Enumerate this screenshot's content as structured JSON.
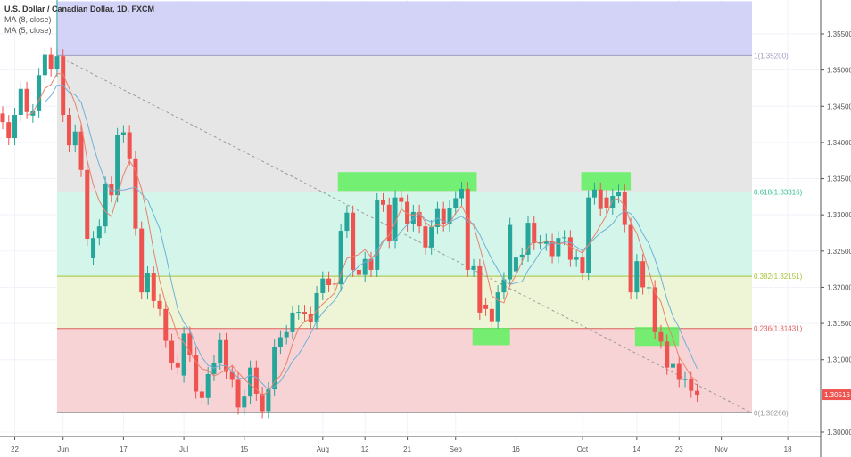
{
  "header": {
    "title": "U.S. Dollar / Canadian Dollar, 1D, FXCM",
    "indicators": [
      "MA (8, close)",
      "MA (5, close)"
    ]
  },
  "chart_data": {
    "type": "candlestick",
    "symbol": "USDCAD",
    "ylim": [
      1.2985,
      1.3595
    ],
    "y_ticks": [
      "1.30000",
      "1.31000",
      "1.31500",
      "1.32000",
      "1.32500",
      "1.33000",
      "1.33500",
      "1.34000",
      "1.34500",
      "1.35000",
      "1.35500"
    ],
    "x_ticks": [
      {
        "label": "22",
        "i": 2
      },
      {
        "label": "Jun",
        "i": 10
      },
      {
        "label": "17",
        "i": 20
      },
      {
        "label": "Jul",
        "i": 30
      },
      {
        "label": "15",
        "i": 40
      },
      {
        "label": "Aug",
        "i": 53
      },
      {
        "label": "12",
        "i": 60
      },
      {
        "label": "21",
        "i": 67
      },
      {
        "label": "Sep",
        "i": 75
      },
      {
        "label": "16",
        "i": 85
      },
      {
        "label": "Oct",
        "i": 96
      },
      {
        "label": "14",
        "i": 105
      },
      {
        "label": "23",
        "i": 112
      },
      {
        "label": "Nov",
        "i": 119
      },
      {
        "label": "18",
        "i": 130
      }
    ],
    "candles_oc": [
      [
        1.344,
        1.3428
      ],
      [
        1.3428,
        1.3406
      ],
      [
        1.3406,
        1.3438
      ],
      [
        1.3438,
        1.3474
      ],
      [
        1.3474,
        1.3442
      ],
      [
        1.3437,
        1.3443
      ],
      [
        1.3443,
        1.3493
      ],
      [
        1.3493,
        1.3521
      ],
      [
        1.3521,
        1.3501
      ],
      [
        1.3501,
        1.3519
      ],
      [
        1.3519,
        1.3438
      ],
      [
        1.3438,
        1.3396
      ],
      [
        1.3396,
        1.3415
      ],
      [
        1.3415,
        1.3362
      ],
      [
        1.3362,
        1.3267
      ],
      [
        1.324,
        1.3268
      ],
      [
        1.3268,
        1.3284
      ],
      [
        1.3284,
        1.3343
      ],
      [
        1.3343,
        1.3327
      ],
      [
        1.3327,
        1.341
      ],
      [
        1.341,
        1.3414
      ],
      [
        1.3414,
        1.3378
      ],
      [
        1.3378,
        1.3281
      ],
      [
        1.3281,
        1.3193
      ],
      [
        1.3193,
        1.3219
      ],
      [
        1.3219,
        1.3181
      ],
      [
        1.3181,
        1.317
      ],
      [
        1.317,
        1.3126
      ],
      [
        1.3126,
        1.3096
      ],
      [
        1.3096,
        1.3089
      ],
      [
        1.3078,
        1.3136
      ],
      [
        1.3136,
        1.3107
      ],
      [
        1.3107,
        1.3056
      ],
      [
        1.3056,
        1.3047
      ],
      [
        1.3047,
        1.308
      ],
      [
        1.308,
        1.3096
      ],
      [
        1.3096,
        1.3127
      ],
      [
        1.3127,
        1.3083
      ],
      [
        1.3083,
        1.3072
      ],
      [
        1.3072,
        1.3034
      ],
      [
        1.3034,
        1.3049
      ],
      [
        1.3049,
        1.3089
      ],
      [
        1.3089,
        1.3053
      ],
      [
        1.3053,
        1.3029
      ],
      [
        1.3029,
        1.3059
      ],
      [
        1.3059,
        1.3118
      ],
      [
        1.3118,
        1.3131
      ],
      [
        1.3131,
        1.3138
      ],
      [
        1.3138,
        1.3165
      ],
      [
        1.3165,
        1.3166
      ],
      [
        1.3166,
        1.3163
      ],
      [
        1.3163,
        1.3152
      ],
      [
        1.3152,
        1.3192
      ],
      [
        1.3192,
        1.3212
      ],
      [
        1.3212,
        1.3203
      ],
      [
        1.3205,
        1.3204
      ],
      [
        1.3204,
        1.3278
      ],
      [
        1.3278,
        1.3303
      ],
      [
        1.3303,
        1.3224
      ],
      [
        1.3224,
        1.3217
      ],
      [
        1.3217,
        1.3239
      ],
      [
        1.3239,
        1.3224
      ],
      [
        1.3224,
        1.332
      ],
      [
        1.332,
        1.3314
      ],
      [
        1.3314,
        1.3264
      ],
      [
        1.3264,
        1.3324
      ],
      [
        1.3324,
        1.3318
      ],
      [
        1.3318,
        1.3287
      ],
      [
        1.3287,
        1.3304
      ],
      [
        1.3304,
        1.3284
      ],
      [
        1.3284,
        1.3255
      ],
      [
        1.3255,
        1.3283
      ],
      [
        1.3283,
        1.3308
      ],
      [
        1.3308,
        1.3287
      ],
      [
        1.3287,
        1.331
      ],
      [
        1.331,
        1.3323
      ],
      [
        1.3323,
        1.3336
      ],
      [
        1.3336,
        1.3224
      ],
      [
        1.3224,
        1.3229
      ],
      [
        1.3229,
        1.3165
      ],
      [
        1.3176,
        1.317
      ],
      [
        1.317,
        1.3153
      ],
      [
        1.3153,
        1.3193
      ],
      [
        1.3193,
        1.3211
      ],
      [
        1.3211,
        1.3286
      ],
      [
        1.3222,
        1.3241
      ],
      [
        1.3241,
        1.3245
      ],
      [
        1.3245,
        1.3289
      ],
      [
        1.3289,
        1.3261
      ],
      [
        1.3262,
        1.3262
      ],
      [
        1.326,
        1.3264
      ],
      [
        1.3264,
        1.3243
      ],
      [
        1.3243,
        1.3268
      ],
      [
        1.3268,
        1.3269
      ],
      [
        1.3269,
        1.3238
      ],
      [
        1.3238,
        1.3241
      ],
      [
        1.3241,
        1.322
      ],
      [
        1.322,
        1.3324
      ],
      [
        1.3324,
        1.3335
      ],
      [
        1.3335,
        1.3308
      ],
      [
        1.3324,
        1.331
      ],
      [
        1.331,
        1.3326
      ],
      [
        1.3326,
        1.3332
      ],
      [
        1.3332,
        1.3286
      ],
      [
        1.3286,
        1.3193
      ],
      [
        1.3193,
        1.3236
      ],
      [
        1.3236,
        1.32
      ],
      [
        1.32,
        1.32
      ],
      [
        1.32,
        1.3138
      ],
      [
        1.3138,
        1.3125
      ],
      [
        1.3125,
        1.3089
      ],
      [
        1.3089,
        1.3094
      ],
      [
        1.3094,
        1.3072
      ],
      [
        1.3072,
        1.3073
      ],
      [
        1.3073,
        1.3057
      ],
      [
        1.3057,
        1.30516
      ]
    ],
    "last_price": "1.30516",
    "moving_averages": [
      {
        "name": "MA (8, close)",
        "period": 8,
        "color": "#6fb1d6"
      },
      {
        "name": "MA (5, close)",
        "period": 5,
        "color": "#e8826e"
      }
    ],
    "fib_levels": [
      {
        "label": "1(1.35200)",
        "price": 1.352,
        "color": "#9e9ec0"
      },
      {
        "label": "0.618(1.33316)",
        "price": 1.33316,
        "color": "#2fbf8f"
      },
      {
        "label": "0.382(1.32151)",
        "price": 1.32151,
        "color": "#a6c23a"
      },
      {
        "label": "0.236(1.31431)",
        "price": 1.31431,
        "color": "#e0605f"
      },
      {
        "label": "0(1.30266)",
        "price": 1.30266,
        "color": "#999999"
      }
    ],
    "fib_zones": [
      {
        "from": 1.352,
        "to": 1.3595,
        "color": "#d3d3f7"
      },
      {
        "from": 1.33316,
        "to": 1.352,
        "color": "#e6e6e6"
      },
      {
        "from": 1.32151,
        "to": 1.33316,
        "color": "#d3f5ea"
      },
      {
        "from": 1.31431,
        "to": 1.32151,
        "color": "#eef5d6"
      },
      {
        "from": 1.30266,
        "to": 1.31431,
        "color": "#f7d3d5"
      }
    ],
    "fib_start_i": 9,
    "trend_line": {
      "from": {
        "i": 9,
        "price": 1.352
      },
      "to": {
        "i": 124,
        "price": 1.30266
      }
    },
    "highlight_boxes": [
      {
        "i0": 55.5,
        "i1": 78.5,
        "top": 1.3359,
        "bottom": 1.3333
      },
      {
        "i0": 77.8,
        "i1": 84,
        "top": 1.3144,
        "bottom": 1.312
      },
      {
        "i0": 95.8,
        "i1": 104,
        "top": 1.3359,
        "bottom": 1.3334
      },
      {
        "i0": 104.7,
        "i1": 112,
        "top": 1.3145,
        "bottom": 1.3119
      }
    ],
    "colors": {
      "up": "#26a69a",
      "down": "#ef5350",
      "box": "#5ef15e",
      "last_price_bg": "#ef5350"
    }
  }
}
